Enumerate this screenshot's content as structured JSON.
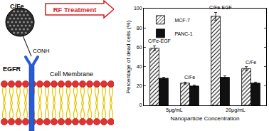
{
  "chart_data": {
    "type": "bar",
    "categories": [
      "C/Fe-EGF",
      "C/Fe",
      "C/Fe-EGF",
      "C/Fe"
    ],
    "x_groups": [
      "5μg/mL",
      "5μg/mL",
      "20μg/mL",
      "20μg/mL"
    ],
    "x_label": "Nanoparticle Concentration",
    "y_label": "Percentage of dead cells (%)",
    "ylim": [
      0,
      100
    ],
    "yticks": [
      0,
      20,
      40,
      60,
      80,
      100
    ],
    "legend": "top left",
    "series": [
      {
        "name": "MCF-7",
        "color": "#ffffff",
        "marker": "hatched",
        "values": [
          59,
          23,
          92,
          38
        ],
        "errors": [
          2.5,
          1,
          4,
          2
        ]
      },
      {
        "name": "PANC-1",
        "color": "#111111",
        "values": [
          28,
          20,
          29,
          23
        ],
        "errors": [
          1,
          1,
          1.5,
          1
        ]
      }
    ]
  },
  "diagram": {
    "particle": "C/Fe",
    "treatment": "RF Treatment",
    "linker": "CONH",
    "receptor": "EGFR",
    "membrane": "Cell Membrane"
  }
}
